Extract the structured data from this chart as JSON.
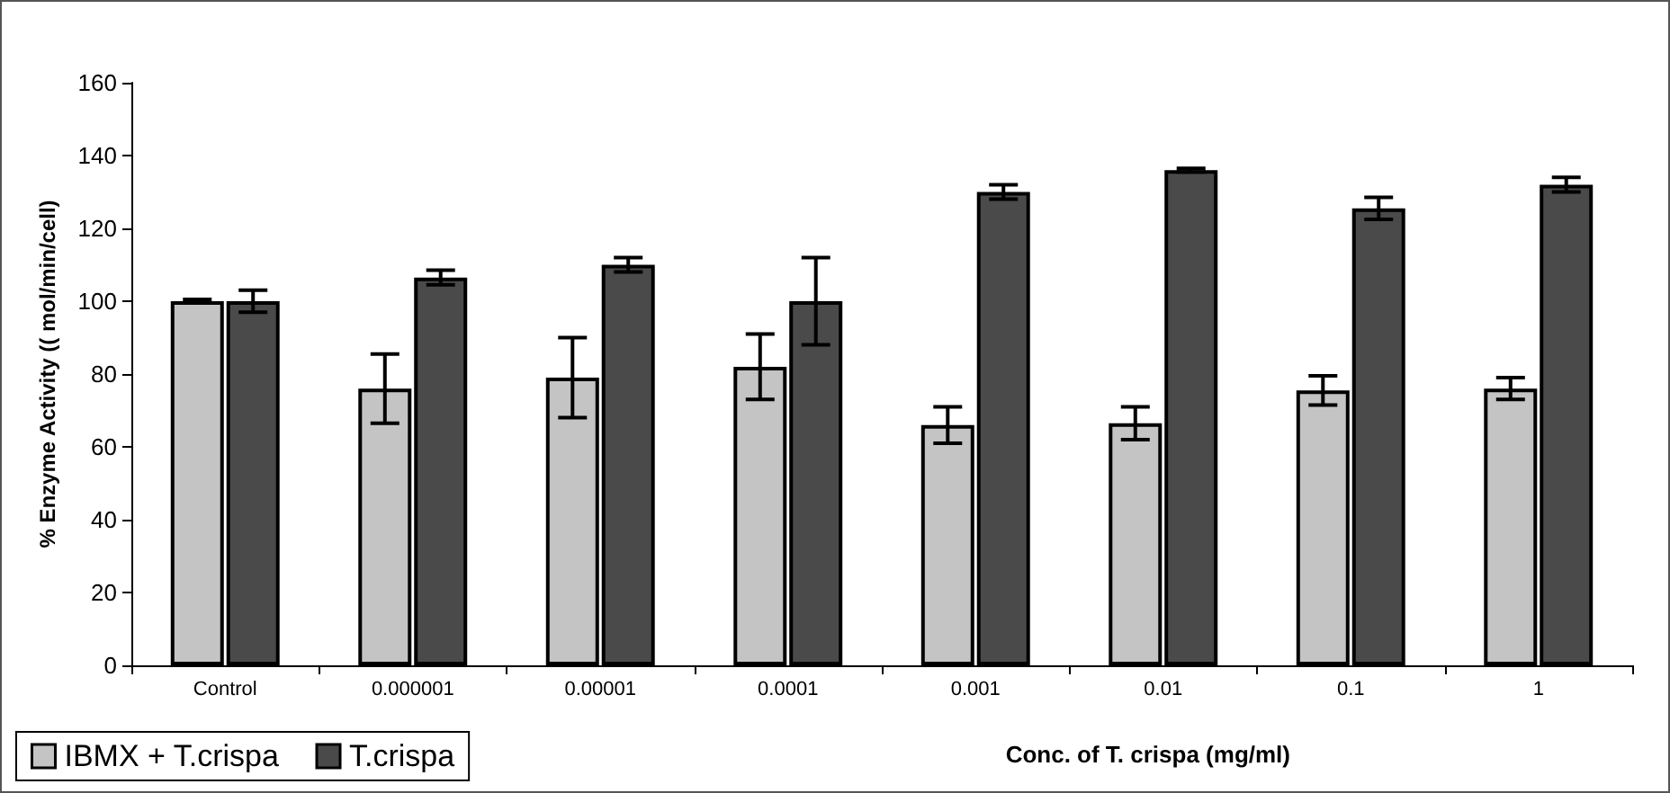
{
  "chart_data": {
    "type": "bar",
    "xlabel": "Conc. of T. crispa (mg/ml)",
    "ylabel": "% Enzyme Activity (( mol/min/cell)",
    "categories": [
      "Control",
      "0.000001",
      "0.00001",
      "0.0001",
      "0.001",
      "0.01",
      "0.1",
      "1"
    ],
    "series": [
      {
        "name": "IBMX + T.crispa",
        "color": "#c4c4c4",
        "values": [
          100,
          76,
          79,
          82,
          66,
          66.5,
          75.5,
          76
        ],
        "errors": [
          0.5,
          9.5,
          11,
          9,
          5,
          4.5,
          4,
          3
        ]
      },
      {
        "name": "T.crispa",
        "color": "#4a4a4a",
        "values": [
          100,
          106.5,
          110,
          100,
          130,
          136,
          125.5,
          132
        ],
        "errors": [
          3,
          2,
          2,
          12,
          2,
          0.5,
          3,
          2
        ]
      }
    ],
    "ylim": [
      0,
      160
    ],
    "yticks": [
      0,
      20,
      40,
      60,
      80,
      100,
      120,
      140,
      160
    ],
    "grid": false,
    "legend": "bottom left"
  }
}
